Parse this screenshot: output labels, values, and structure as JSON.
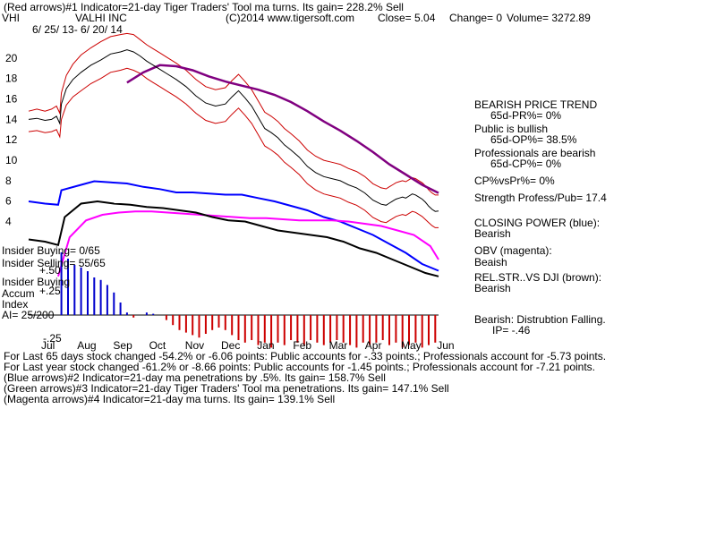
{
  "header": {
    "line1": "(Red arrows)#1 Indicator=21-day Tiger Traders' Tool ma turns. Its gain= 228.2% Sell",
    "ticker": "VHI",
    "company": "VALHI INC",
    "copyright": "(C)2014 www.tigersoft.com",
    "close": "Close=  5.04",
    "change": "Change= 0",
    "volume": "Volume= 3272.89",
    "date_range": "6/ 25/ 13- 6/ 20/ 14"
  },
  "side_panel": {
    "bearish_trend": "BEARISH PRICE TREND",
    "pr": "65d-PR%= 0%",
    "public_bullish": "Public is bullish",
    "op": "65d-OP%= 38.5%",
    "prof_bearish": "Professionals are bearish",
    "cp": "65d-CP%= 0%",
    "cpvspr": "CP%vsPr%=  0%",
    "strength": "Strength Profess/Pub= 17.4",
    "closing_power": "CLOSING POWER (blue):",
    "closing_power_val": "Bearish",
    "obv": "OBV (magenta):",
    "obv_val": "Beaish",
    "relstr": "REL.STR..VS DJI (brown):",
    "relstr_val": "Bearish",
    "distribution": "Bearish: Distrubtion Falling.",
    "ip": "IP= -.46"
  },
  "insider": {
    "buying": "Insider Buying= 0/65",
    "selling": "Insider Selling= 55/65",
    "accum_title_1": "Insider Buying",
    "accum_title_2": "Accum",
    "accum_title_3": "Index",
    "ai": "AI= 25/200",
    "t_p50": "+.50",
    "t_p25": "+.25",
    "t_m25": "-.25"
  },
  "footer": {
    "line1a": "For Last 65 days stock changed -54.2% or -6.06 points:  Public accounts for -.33 points.;  Professionals account for -5.73 points.",
    "line2": "For Last year stock changed -61.2% or -8.66 points:  Public accounts for -1.45 points.;  Professionals account for -7.21 points.",
    "line3": "(Blue arrows)#2 Indicator=21-day ma penetrations by .5%. Its gain= 158.7% Sell",
    "line4": "(Green arrows)#3 Indicator=21-day Tiger Traders' Tool ma penetrations. Its gain= 147.1% Sell",
    "line5": "(Magenta arrows)#4 Indicator=21-day ma turns. Its gain= 139.1% Sell"
  },
  "colors": {
    "price": "#000000",
    "bands": "#cc0000",
    "ma": "#800080",
    "closing_power": "#0000ff",
    "obv": "#ff00ff",
    "relstr": "#000000",
    "accum_pos": "#0000cc",
    "accum_neg": "#cc0000"
  },
  "chart_data": {
    "type": "line",
    "title": "(Red arrows)#1 Indicator=21-day Tiger Traders' Tool ma turns. Its gain= 228.2% Sell",
    "x_labels": [
      "Jul",
      "Aug",
      "Sep",
      "Oct",
      "Nov",
      "Dec",
      "Jan",
      "Feb",
      "Mar",
      "Apr",
      "May",
      "Jun"
    ],
    "yticks": [
      4,
      6,
      8,
      10,
      12,
      14,
      16,
      18,
      20
    ],
    "ylim": [
      3,
      22
    ],
    "price": {
      "name": "VHI",
      "x": [
        0,
        5,
        10,
        14,
        17,
        19,
        20,
        23,
        27,
        32,
        38,
        44,
        50,
        56,
        60,
        64,
        68,
        72,
        76,
        80,
        84,
        90,
        96,
        102,
        108,
        114,
        120,
        124,
        128,
        132,
        136,
        140,
        144,
        148,
        152,
        156,
        160,
        165,
        170,
        175,
        180,
        185,
        190,
        195,
        200,
        205,
        210,
        215,
        218,
        220,
        222,
        224,
        226,
        228,
        230,
        232,
        234,
        236,
        238,
        240,
        242,
        244,
        246,
        248,
        250
      ],
      "y": [
        14.0,
        14.1,
        13.9,
        14.0,
        14.3,
        13.6,
        15.5,
        17.0,
        17.9,
        18.6,
        19.3,
        19.8,
        20.4,
        20.6,
        20.8,
        20.6,
        20.2,
        19.7,
        19.3,
        18.9,
        18.5,
        17.9,
        17.2,
        16.3,
        15.6,
        15.3,
        15.5,
        16.2,
        16.8,
        16.1,
        15.3,
        14.2,
        13.1,
        12.7,
        12.2,
        11.5,
        11.0,
        10.3,
        9.4,
        8.8,
        8.4,
        8.2,
        8.0,
        7.6,
        7.3,
        6.8,
        6.1,
        5.7,
        5.6,
        5.8,
        6.0,
        6.2,
        6.3,
        6.4,
        6.3,
        6.5,
        6.7,
        6.6,
        6.4,
        6.2,
        5.9,
        5.5,
        5.2,
        5.0,
        5.04
      ]
    },
    "bands_upper_y": [
      14.8,
      15.0,
      14.8,
      15.0,
      15.3,
      14.6,
      16.6,
      18.3,
      19.4,
      20.3,
      21.0,
      21.6,
      22.1,
      22.3,
      22.4,
      22.3,
      21.8,
      21.3,
      20.9,
      20.5,
      20.1,
      19.5,
      18.8,
      17.9,
      17.2,
      16.9,
      17.1,
      17.8,
      18.4,
      17.7,
      16.9,
      15.8,
      14.7,
      14.3,
      13.8,
      13.1,
      12.6,
      11.9,
      11.0,
      10.4,
      10.0,
      9.8,
      9.6,
      9.2,
      8.9,
      8.4,
      7.7,
      7.3,
      7.2,
      7.4,
      7.6,
      7.8,
      7.9,
      8.0,
      7.9,
      8.1,
      8.3,
      8.2,
      8.0,
      7.8,
      7.5,
      7.1,
      6.8,
      6.6,
      6.6
    ],
    "bands_lower_y": [
      12.8,
      12.9,
      12.7,
      12.8,
      13.0,
      12.3,
      14.0,
      15.4,
      16.2,
      16.8,
      17.5,
      18.0,
      18.6,
      18.8,
      19.0,
      18.8,
      18.5,
      18.0,
      17.6,
      17.2,
      16.8,
      16.2,
      15.5,
      14.6,
      13.9,
      13.6,
      13.8,
      14.5,
      15.1,
      14.4,
      13.6,
      12.5,
      11.4,
      11.0,
      10.5,
      9.8,
      9.3,
      8.6,
      7.7,
      7.1,
      6.7,
      6.5,
      6.3,
      5.9,
      5.6,
      5.1,
      4.4,
      4.0,
      3.9,
      4.1,
      4.3,
      4.5,
      4.6,
      4.7,
      4.6,
      4.8,
      5.0,
      4.9,
      4.7,
      4.5,
      4.2,
      3.9,
      3.6,
      3.4,
      3.4
    ],
    "ma": {
      "x": [
        60,
        70,
        80,
        90,
        100,
        110,
        120,
        130,
        140,
        150,
        160,
        170,
        180,
        190,
        200,
        210,
        220,
        230,
        240,
        250
      ],
      "y": [
        17.6,
        18.6,
        19.3,
        19.2,
        18.8,
        18.2,
        17.7,
        17.3,
        16.9,
        16.4,
        15.7,
        14.8,
        13.8,
        12.9,
        11.9,
        10.8,
        9.6,
        8.6,
        7.6,
        6.8
      ]
    },
    "closing_power": {
      "name": "CLOSING POWER (blue)",
      "x": [
        0,
        10,
        18,
        20,
        30,
        40,
        50,
        60,
        70,
        80,
        90,
        100,
        110,
        120,
        130,
        140,
        150,
        160,
        170,
        180,
        190,
        200,
        210,
        220,
        230,
        240,
        250
      ],
      "y": [
        0.72,
        0.7,
        0.69,
        0.82,
        0.86,
        0.9,
        0.89,
        0.88,
        0.85,
        0.83,
        0.8,
        0.8,
        0.79,
        0.78,
        0.78,
        0.75,
        0.72,
        0.68,
        0.64,
        0.58,
        0.54,
        0.48,
        0.42,
        0.34,
        0.26,
        0.16,
        0.1
      ]
    },
    "obv": {
      "name": "OBV (magenta)",
      "x": [
        18,
        25,
        35,
        45,
        55,
        65,
        75,
        85,
        95,
        105,
        115,
        125,
        135,
        145,
        155,
        165,
        175,
        185,
        195,
        205,
        215,
        225,
        235,
        245,
        250
      ],
      "y": [
        0.05,
        0.4,
        0.55,
        0.6,
        0.62,
        0.63,
        0.63,
        0.62,
        0.61,
        0.6,
        0.59,
        0.58,
        0.57,
        0.57,
        0.56,
        0.55,
        0.55,
        0.55,
        0.54,
        0.52,
        0.5,
        0.46,
        0.42,
        0.32,
        0.2
      ]
    },
    "relstr": {
      "name": "REL.STR..VS DJI (brown)",
      "x": [
        0,
        10,
        18,
        22,
        32,
        42,
        52,
        62,
        72,
        82,
        92,
        102,
        112,
        122,
        132,
        142,
        152,
        162,
        172,
        182,
        192,
        202,
        212,
        222,
        232,
        242,
        250
      ],
      "y": [
        0.38,
        0.36,
        0.33,
        0.58,
        0.7,
        0.72,
        0.7,
        0.69,
        0.67,
        0.66,
        0.64,
        0.62,
        0.58,
        0.55,
        0.54,
        0.5,
        0.46,
        0.44,
        0.42,
        0.4,
        0.36,
        0.3,
        0.26,
        0.2,
        0.14,
        0.08,
        0.05
      ]
    },
    "accum_index": {
      "name": "Insider Buying Accum Index",
      "x": [
        20,
        24,
        28,
        32,
        36,
        40,
        44,
        48,
        52,
        56,
        60,
        64,
        68,
        72,
        76,
        80,
        84,
        88,
        92,
        96,
        100,
        104,
        108,
        112,
        116,
        120,
        124,
        128,
        132,
        136,
        140,
        144,
        148,
        152,
        156,
        160,
        164,
        168,
        172,
        176,
        180,
        184,
        188,
        192,
        196,
        200,
        204,
        208,
        212,
        216,
        220,
        224,
        228,
        232,
        236,
        240,
        244,
        248
      ],
      "y": [
        0.5,
        0.45,
        0.4,
        0.38,
        0.35,
        0.3,
        0.28,
        0.24,
        0.18,
        0.1,
        0.02,
        -0.02,
        0.0,
        0.02,
        0.01,
        0.0,
        -0.04,
        -0.08,
        -0.12,
        -0.14,
        -0.16,
        -0.18,
        -0.15,
        -0.12,
        -0.1,
        -0.12,
        -0.16,
        -0.2,
        -0.22,
        -0.2,
        -0.24,
        -0.22,
        -0.26,
        -0.22,
        -0.24,
        -0.2,
        -0.22,
        -0.24,
        -0.2,
        -0.22,
        -0.24,
        -0.22,
        -0.2,
        -0.22,
        -0.24,
        -0.26,
        -0.22,
        -0.24,
        -0.22,
        -0.2,
        -0.24,
        -0.22,
        -0.26,
        -0.24,
        -0.22,
        -0.26,
        -0.24,
        -0.22
      ]
    },
    "accum_ticks": [
      "+.50",
      "+.25",
      "-.25"
    ]
  }
}
